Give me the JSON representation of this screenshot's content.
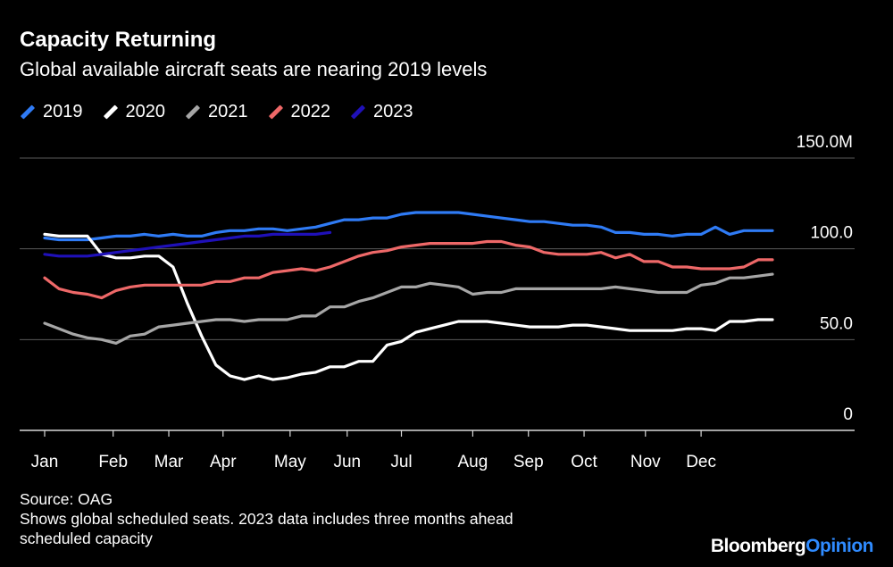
{
  "header": {
    "title": "Capacity Returning",
    "subtitle": "Global available aircraft seats are nearing 2019 levels"
  },
  "footer": {
    "source": "Source: OAG",
    "note_line1": "Shows global scheduled seats. 2023 data includes three months ahead",
    "note_line2": "scheduled capacity"
  },
  "brand": {
    "name": "Bloomberg",
    "suffix": "Opinion",
    "suffix_color": "#2f8bff"
  },
  "chart_data": {
    "type": "line",
    "title": "Capacity Returning",
    "subtitle": "Global available aircraft seats are nearing 2019 levels",
    "xlabel": "",
    "ylabel": "",
    "unit": "M seats (weekly)",
    "xlim": [
      1,
      52
    ],
    "ylim": [
      0,
      150
    ],
    "y_ticks": [
      {
        "value": 0,
        "label": "0"
      },
      {
        "value": 50,
        "label": "50.0"
      },
      {
        "value": 100,
        "label": "100.0"
      },
      {
        "value": 150,
        "label": "150.0M"
      }
    ],
    "x_ticks": [
      {
        "week": 1,
        "label": "Jan"
      },
      {
        "week": 5.8,
        "label": "Feb"
      },
      {
        "week": 9.7,
        "label": "Mar"
      },
      {
        "week": 13.5,
        "label": "Apr"
      },
      {
        "week": 18.2,
        "label": "May"
      },
      {
        "week": 22.2,
        "label": "Jun"
      },
      {
        "week": 26,
        "label": "Jul"
      },
      {
        "week": 31,
        "label": "Aug"
      },
      {
        "week": 34.9,
        "label": "Sep"
      },
      {
        "week": 38.8,
        "label": "Oct"
      },
      {
        "week": 43.1,
        "label": "Nov"
      },
      {
        "week": 47,
        "label": "Dec"
      }
    ],
    "grid": true,
    "legend_position": "top-left",
    "series": [
      {
        "name": "2019",
        "color": "#2f7bf5",
        "x": [
          1,
          2,
          3,
          4,
          5,
          6,
          7,
          8,
          9,
          10,
          11,
          12,
          13,
          14,
          15,
          16,
          17,
          18,
          19,
          20,
          21,
          22,
          23,
          24,
          25,
          26,
          27,
          28,
          29,
          30,
          31,
          32,
          33,
          34,
          35,
          36,
          37,
          38,
          39,
          40,
          41,
          42,
          43,
          44,
          45,
          46,
          47,
          48,
          49,
          50,
          51,
          52
        ],
        "values": [
          106,
          105,
          105,
          105,
          106,
          107,
          107,
          108,
          107,
          108,
          107,
          107,
          109,
          110,
          110,
          111,
          111,
          110,
          111,
          112,
          114,
          116,
          116,
          117,
          117,
          119,
          120,
          120,
          120,
          120,
          119,
          118,
          117,
          116,
          115,
          115,
          114,
          113,
          113,
          112,
          109,
          109,
          108,
          108,
          107,
          108,
          108,
          112,
          108,
          110,
          110,
          110
        ]
      },
      {
        "name": "2020",
        "color": "#ffffff",
        "x": [
          1,
          2,
          3,
          4,
          5,
          6,
          7,
          8,
          9,
          10,
          11,
          12,
          13,
          14,
          15,
          16,
          17,
          18,
          19,
          20,
          21,
          22,
          23,
          24,
          25,
          26,
          27,
          28,
          29,
          30,
          31,
          32,
          33,
          34,
          35,
          36,
          37,
          38,
          39,
          40,
          41,
          42,
          43,
          44,
          45,
          46,
          47,
          48,
          49,
          50,
          51,
          52
        ],
        "values": [
          108,
          107,
          107,
          107,
          97,
          95,
          95,
          96,
          96,
          90,
          70,
          52,
          36,
          30,
          28,
          30,
          28,
          29,
          31,
          32,
          35,
          35,
          38,
          38,
          47,
          49,
          54,
          56,
          58,
          60,
          60,
          60,
          59,
          58,
          57,
          57,
          57,
          58,
          58,
          57,
          56,
          55,
          55,
          55,
          55,
          56,
          56,
          55,
          60,
          60,
          61,
          61
        ]
      },
      {
        "name": "2021",
        "color": "#a6a6a6",
        "x": [
          1,
          2,
          3,
          4,
          5,
          6,
          7,
          8,
          9,
          10,
          11,
          12,
          13,
          14,
          15,
          16,
          17,
          18,
          19,
          20,
          21,
          22,
          23,
          24,
          25,
          26,
          27,
          28,
          29,
          30,
          31,
          32,
          33,
          34,
          35,
          36,
          37,
          38,
          39,
          40,
          41,
          42,
          43,
          44,
          45,
          46,
          47,
          48,
          49,
          50,
          51,
          52
        ],
        "values": [
          59,
          56,
          53,
          51,
          50,
          48,
          52,
          53,
          57,
          58,
          59,
          60,
          61,
          61,
          60,
          61,
          61,
          61,
          63,
          63,
          68,
          68,
          71,
          73,
          76,
          79,
          79,
          81,
          80,
          79,
          75,
          76,
          76,
          78,
          78,
          78,
          78,
          78,
          78,
          78,
          79,
          78,
          77,
          76,
          76,
          76,
          80,
          81,
          84,
          84,
          85,
          86
        ]
      },
      {
        "name": "2022",
        "color": "#ee6868",
        "x": [
          1,
          2,
          3,
          4,
          5,
          6,
          7,
          8,
          9,
          10,
          11,
          12,
          13,
          14,
          15,
          16,
          17,
          18,
          19,
          20,
          21,
          22,
          23,
          24,
          25,
          26,
          27,
          28,
          29,
          30,
          31,
          32,
          33,
          34,
          35,
          36,
          37,
          38,
          39,
          40,
          41,
          42,
          43,
          44,
          45,
          46,
          47,
          48,
          49,
          50,
          51,
          52
        ],
        "values": [
          84,
          78,
          76,
          75,
          73,
          77,
          79,
          80,
          80,
          80,
          80,
          80,
          82,
          82,
          84,
          84,
          87,
          88,
          89,
          88,
          90,
          93,
          96,
          98,
          99,
          101,
          102,
          103,
          103,
          103,
          103,
          104,
          104,
          102,
          101,
          98,
          97,
          97,
          97,
          98,
          95,
          97,
          93,
          93,
          90,
          90,
          89,
          89,
          89,
          90,
          94,
          94
        ]
      },
      {
        "name": "2023",
        "color": "#1f10b8",
        "x": [
          1,
          2,
          3,
          4,
          5,
          6,
          7,
          8,
          9,
          10,
          11,
          12,
          13,
          14,
          15,
          16,
          17,
          18,
          19,
          20,
          21
        ],
        "values": [
          97,
          96,
          96,
          96,
          97,
          98,
          99,
          100,
          101,
          102,
          103,
          104,
          105,
          106,
          107,
          107,
          108,
          108,
          108,
          108,
          109
        ]
      }
    ]
  }
}
